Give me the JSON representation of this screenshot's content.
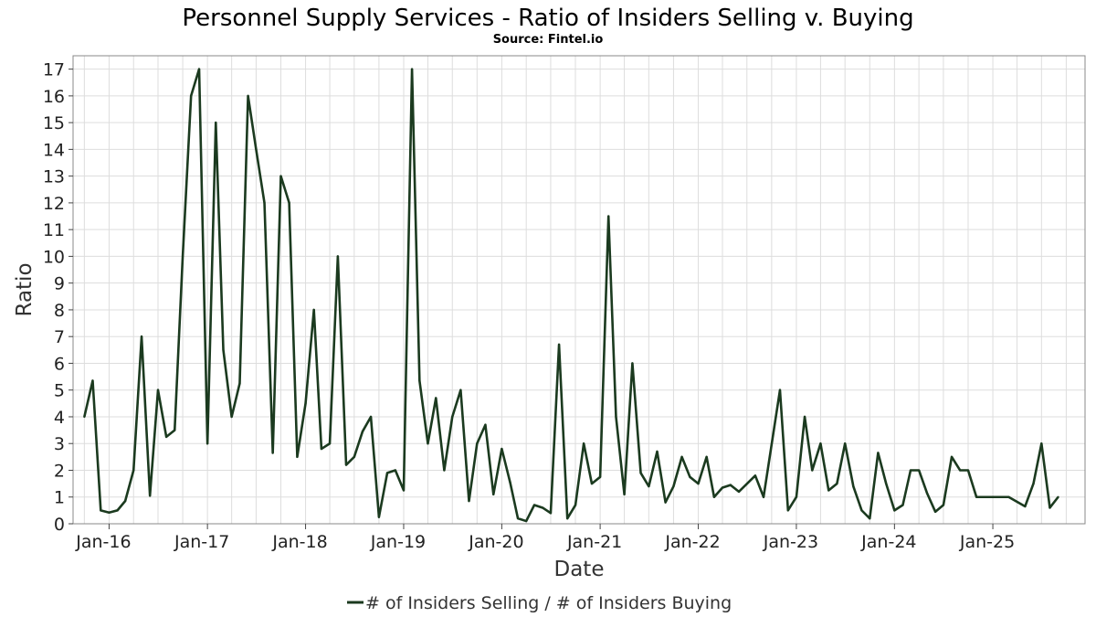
{
  "chart_data": {
    "type": "line",
    "title": "Personnel Supply Services - Ratio of Insiders Selling v. Buying",
    "subtitle": "Source: Fintel.io",
    "xlabel": "Date",
    "ylabel": "Ratio",
    "ylim": [
      0,
      17.5
    ],
    "y_ticks": [
      0,
      1,
      2,
      3,
      4,
      5,
      6,
      7,
      8,
      9,
      10,
      11,
      12,
      13,
      14,
      15,
      16,
      17
    ],
    "xlim": [
      "2015-08-20",
      "2025-12-10"
    ],
    "x_ticks": [
      {
        "date": "2016-01-01",
        "label": "Jan-16"
      },
      {
        "date": "2017-01-01",
        "label": "Jan-17"
      },
      {
        "date": "2018-01-01",
        "label": "Jan-18"
      },
      {
        "date": "2019-01-01",
        "label": "Jan-19"
      },
      {
        "date": "2020-01-01",
        "label": "Jan-20"
      },
      {
        "date": "2021-01-01",
        "label": "Jan-21"
      },
      {
        "date": "2022-01-01",
        "label": "Jan-22"
      },
      {
        "date": "2023-01-01",
        "label": "Jan-23"
      },
      {
        "date": "2024-01-01",
        "label": "Jan-24"
      },
      {
        "date": "2025-01-01",
        "label": "Jan-25"
      }
    ],
    "grid": true,
    "legend_position": "bottom-center",
    "series": [
      {
        "name": "# of Insiders Selling / # of Insiders Buying",
        "color": "#1b3a1f",
        "points": [
          [
            "2015-10-01",
            4.0
          ],
          [
            "2015-11-01",
            5.35
          ],
          [
            "2015-12-01",
            0.5
          ],
          [
            "2016-01-01",
            0.42
          ],
          [
            "2016-02-01",
            0.5
          ],
          [
            "2016-03-01",
            0.85
          ],
          [
            "2016-04-01",
            2.0
          ],
          [
            "2016-05-01",
            7.0
          ],
          [
            "2016-06-01",
            1.05
          ],
          [
            "2016-07-01",
            5.0
          ],
          [
            "2016-08-01",
            3.25
          ],
          [
            "2016-09-01",
            3.5
          ],
          [
            "2016-10-01",
            10.0
          ],
          [
            "2016-11-01",
            16.0
          ],
          [
            "2016-12-01",
            17.0
          ],
          [
            "2017-01-01",
            3.0
          ],
          [
            "2017-02-01",
            15.0
          ],
          [
            "2017-03-01",
            6.5
          ],
          [
            "2017-04-01",
            4.0
          ],
          [
            "2017-05-01",
            5.25
          ],
          [
            "2017-06-01",
            16.0
          ],
          [
            "2017-07-01",
            14.0
          ],
          [
            "2017-08-01",
            12.0
          ],
          [
            "2017-09-01",
            2.65
          ],
          [
            "2017-10-01",
            13.0
          ],
          [
            "2017-11-01",
            12.0
          ],
          [
            "2017-12-01",
            2.5
          ],
          [
            "2018-01-01",
            4.5
          ],
          [
            "2018-02-01",
            8.0
          ],
          [
            "2018-03-01",
            2.8
          ],
          [
            "2018-04-01",
            3.0
          ],
          [
            "2018-05-01",
            10.0
          ],
          [
            "2018-06-01",
            2.2
          ],
          [
            "2018-07-01",
            2.5
          ],
          [
            "2018-08-01",
            3.45
          ],
          [
            "2018-09-01",
            4.0
          ],
          [
            "2018-10-01",
            0.25
          ],
          [
            "2018-11-01",
            1.9
          ],
          [
            "2018-12-01",
            2.0
          ],
          [
            "2019-01-01",
            1.25
          ],
          [
            "2019-02-01",
            17.0
          ],
          [
            "2019-03-01",
            5.35
          ],
          [
            "2019-04-01",
            3.0
          ],
          [
            "2019-05-01",
            4.7
          ],
          [
            "2019-06-01",
            2.0
          ],
          [
            "2019-07-01",
            4.0
          ],
          [
            "2019-08-01",
            5.0
          ],
          [
            "2019-09-01",
            0.85
          ],
          [
            "2019-10-01",
            3.0
          ],
          [
            "2019-11-01",
            3.7
          ],
          [
            "2019-12-01",
            1.1
          ],
          [
            "2020-01-01",
            2.8
          ],
          [
            "2020-02-01",
            1.55
          ],
          [
            "2020-03-01",
            0.2
          ],
          [
            "2020-04-01",
            0.1
          ],
          [
            "2020-05-01",
            0.7
          ],
          [
            "2020-06-01",
            0.6
          ],
          [
            "2020-07-01",
            0.4
          ],
          [
            "2020-08-01",
            6.7
          ],
          [
            "2020-09-01",
            0.2
          ],
          [
            "2020-10-01",
            0.7
          ],
          [
            "2020-11-01",
            3.0
          ],
          [
            "2020-12-01",
            1.5
          ],
          [
            "2021-01-01",
            1.75
          ],
          [
            "2021-02-01",
            11.5
          ],
          [
            "2021-03-01",
            4.0
          ],
          [
            "2021-04-01",
            1.1
          ],
          [
            "2021-05-01",
            6.0
          ],
          [
            "2021-06-01",
            1.9
          ],
          [
            "2021-07-01",
            1.4
          ],
          [
            "2021-08-01",
            2.7
          ],
          [
            "2021-09-01",
            0.8
          ],
          [
            "2021-10-01",
            1.4
          ],
          [
            "2021-11-01",
            2.5
          ],
          [
            "2021-12-01",
            1.75
          ],
          [
            "2022-01-01",
            1.5
          ],
          [
            "2022-02-01",
            2.5
          ],
          [
            "2022-03-01",
            1.0
          ],
          [
            "2022-04-01",
            1.35
          ],
          [
            "2022-05-01",
            1.45
          ],
          [
            "2022-06-01",
            1.2
          ],
          [
            "2022-08-01",
            1.8
          ],
          [
            "2022-09-01",
            1.0
          ],
          [
            "2022-11-01",
            5.0
          ],
          [
            "2022-12-01",
            0.5
          ],
          [
            "2023-01-01",
            1.0
          ],
          [
            "2023-02-01",
            4.0
          ],
          [
            "2023-03-01",
            2.0
          ],
          [
            "2023-04-01",
            3.0
          ],
          [
            "2023-05-01",
            1.25
          ],
          [
            "2023-06-01",
            1.5
          ],
          [
            "2023-07-01",
            3.0
          ],
          [
            "2023-08-01",
            1.4
          ],
          [
            "2023-09-01",
            0.5
          ],
          [
            "2023-10-01",
            0.2
          ],
          [
            "2023-11-01",
            2.65
          ],
          [
            "2023-12-01",
            1.5
          ],
          [
            "2024-01-01",
            0.5
          ],
          [
            "2024-02-01",
            0.7
          ],
          [
            "2024-03-01",
            2.0
          ],
          [
            "2024-04-01",
            2.0
          ],
          [
            "2024-05-01",
            1.15
          ],
          [
            "2024-06-01",
            0.45
          ],
          [
            "2024-07-01",
            0.7
          ],
          [
            "2024-08-01",
            2.5
          ],
          [
            "2024-09-01",
            2.0
          ],
          [
            "2024-10-01",
            2.0
          ],
          [
            "2024-11-01",
            1.0
          ],
          [
            "2025-03-01",
            1.0
          ],
          [
            "2025-05-01",
            0.65
          ],
          [
            "2025-06-01",
            1.5
          ],
          [
            "2025-07-01",
            3.0
          ],
          [
            "2025-08-01",
            0.6
          ],
          [
            "2025-09-01",
            1.0
          ]
        ]
      }
    ]
  }
}
